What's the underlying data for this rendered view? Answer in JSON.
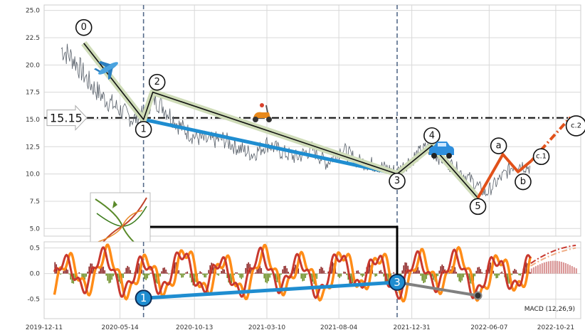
{
  "chart_data": [
    {
      "type": "line",
      "panel": "price",
      "ylim": [
        4.3,
        25.5
      ],
      "xlim": [
        "2019-12-11",
        "2022-12-11"
      ],
      "yticks": [
        "5.0",
        "7.5",
        "10.0",
        "12.5",
        "15.0",
        "17.5",
        "20.0",
        "22.5",
        "25.0"
      ],
      "ytick_values": [
        5.0,
        7.5,
        10.0,
        12.5,
        15.0,
        17.5,
        20.0,
        22.5,
        25.0
      ],
      "grid": true,
      "price_series": {
        "x": [
          "2020-01-15",
          "2020-02-10",
          "2020-03-10",
          "2020-04-10",
          "2020-05-10",
          "2020-06-10",
          "2020-07-01",
          "2020-07-20",
          "2020-08-10",
          "2020-09-10",
          "2020-10-10",
          "2020-11-10",
          "2020-12-10",
          "2021-01-10",
          "2021-02-10",
          "2021-03-10",
          "2021-04-10",
          "2021-05-10",
          "2021-06-10",
          "2021-07-10",
          "2021-08-10",
          "2021-09-10",
          "2021-10-10",
          "2021-11-10",
          "2021-12-01",
          "2021-12-31",
          "2022-01-31",
          "2022-02-28",
          "2022-03-31",
          "2022-04-30",
          "2022-05-31",
          "2022-06-30",
          "2022-07-31",
          "2022-08-31"
        ],
        "y": [
          21.5,
          20.5,
          18.5,
          17.0,
          16.0,
          15.0,
          15.4,
          17.0,
          16.2,
          14.5,
          13.5,
          13.0,
          13.2,
          12.4,
          11.8,
          12.8,
          12.0,
          11.5,
          12.3,
          11.0,
          12.3,
          11.2,
          10.9,
          10.5,
          10.2,
          11.4,
          12.4,
          11.5,
          10.5,
          9.5,
          8.2,
          9.6,
          11.0,
          10.6
        ]
      },
      "wave_points": [
        {
          "label": "0",
          "x": "2020-03-01",
          "y": 22.0
        },
        {
          "label": "1",
          "x": "2020-07-01",
          "y": 15.0
        },
        {
          "label": "2",
          "x": "2020-07-20",
          "y": 17.5
        },
        {
          "label": "3",
          "x": "2021-12-01",
          "y": 10.0
        },
        {
          "label": "4",
          "x": "2022-02-10",
          "y": 12.6
        },
        {
          "label": "5",
          "x": "2022-05-15",
          "y": 7.8
        },
        {
          "label": "a",
          "x": "2022-07-05",
          "y": 11.8
        },
        {
          "label": "b",
          "x": "2022-08-05",
          "y": 10.2
        },
        {
          "label": "c.1",
          "x": "2022-09-01",
          "y": 11.2
        },
        {
          "label": "c.2",
          "x": "2022-11-20",
          "y": 15.2
        }
      ],
      "level": 15.15,
      "level_label": "15.15",
      "vertical_markers": [
        "2020-07-01",
        "2021-12-01"
      ]
    },
    {
      "type": "line",
      "panel": "macd",
      "title": "MACD (12,26,9)",
      "ylim": [
        -0.88,
        0.62
      ],
      "yticks": [
        "-0.5",
        "0.0",
        "0.5"
      ],
      "ytick_values": [
        -0.5,
        0.0,
        0.5
      ],
      "xticks": [
        "2019-12-11",
        "2020-05-14",
        "2020-10-13",
        "2021-03-10",
        "2021-08-04",
        "2021-12-31",
        "2022-06-07",
        "2022-10-21"
      ],
      "divergence_points": [
        {
          "label": "1",
          "x": "2020-07-01",
          "y": -0.48
        },
        {
          "label": "3",
          "x": "2021-12-01",
          "y": -0.17
        }
      ],
      "divergence_end": {
        "x": "2022-05-15",
        "y": -0.43
      },
      "grid": true
    }
  ],
  "colors": {
    "price": "#59616b",
    "elliott_wave": "#111111",
    "wave_halo": "#cfdcb8",
    "divergence": "#1f8dd0",
    "correction": "#e1511a",
    "macd": "#c8382e",
    "signal": "#ff8c17",
    "hist_positive": "#8b2323",
    "hist_negative": "#6b8e23",
    "gray_line": "#808080",
    "grid": "#d8d8d8",
    "level": "#111111",
    "vline": "#556b8a"
  },
  "icons": [
    "airplane-icon",
    "scooter-icon",
    "car-icon",
    "crossover-diagram-icon"
  ]
}
